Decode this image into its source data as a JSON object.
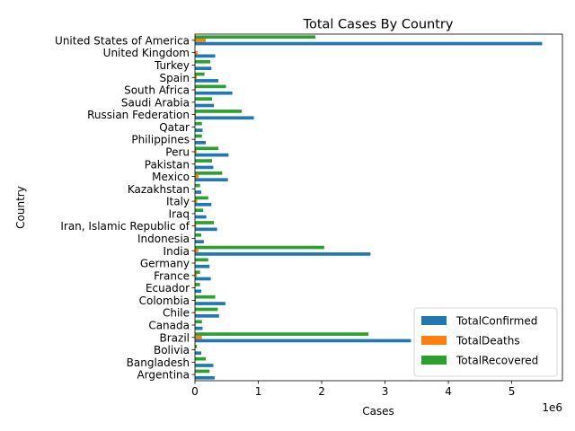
{
  "chart_data": {
    "type": "bar",
    "orientation": "horizontal",
    "title": "Total Cases By Country",
    "xlabel": "Cases",
    "ylabel": "Country",
    "x_offset_label": "1e6",
    "xlim": [
      0,
      5.8
    ],
    "x_ticks": [
      0,
      1,
      2,
      3,
      4,
      5
    ],
    "grid": false,
    "legend_position": "lower-right",
    "categories": [
      "United States of America",
      "United Kingdom",
      "Turkey",
      "Spain",
      "South Africa",
      "Saudi Arabia",
      "Russian Federation",
      "Qatar",
      "Philippines",
      "Peru",
      "Pakistan",
      "Mexico",
      "Kazakhstan",
      "Italy",
      "Iraq",
      "Iran, Islamic Republic of",
      "Indonesia",
      "India",
      "Germany",
      "France",
      "Ecuador",
      "Colombia",
      "Chile",
      "Canada",
      "Brazil",
      "Bolivia",
      "Bangladesh",
      "Argentina"
    ],
    "series": [
      {
        "name": "TotalConfirmed",
        "color": "#1f77b4",
        "values": [
          5.48,
          0.32,
          0.26,
          0.37,
          0.59,
          0.3,
          0.93,
          0.12,
          0.17,
          0.53,
          0.29,
          0.52,
          0.1,
          0.26,
          0.18,
          0.35,
          0.14,
          2.77,
          0.23,
          0.25,
          0.1,
          0.48,
          0.38,
          0.12,
          3.41,
          0.1,
          0.29,
          0.31
        ]
      },
      {
        "name": "TotalDeaths",
        "color": "#ff7f0e",
        "values": [
          0.17,
          0.04,
          0.006,
          0.029,
          0.012,
          0.003,
          0.016,
          0.0002,
          0.003,
          0.026,
          0.006,
          0.056,
          0.0015,
          0.035,
          0.005,
          0.02,
          0.006,
          0.053,
          0.009,
          0.03,
          0.006,
          0.016,
          0.01,
          0.009,
          0.11,
          0.004,
          0.004,
          0.006
        ]
      },
      {
        "name": "TotalRecovered",
        "color": "#2ca02c",
        "values": [
          1.9,
          0.0,
          0.24,
          0.15,
          0.49,
          0.27,
          0.74,
          0.11,
          0.11,
          0.37,
          0.27,
          0.43,
          0.08,
          0.21,
          0.13,
          0.3,
          0.1,
          2.04,
          0.21,
          0.08,
          0.08,
          0.32,
          0.36,
          0.11,
          2.74,
          0.03,
          0.17,
          0.23
        ]
      }
    ]
  }
}
